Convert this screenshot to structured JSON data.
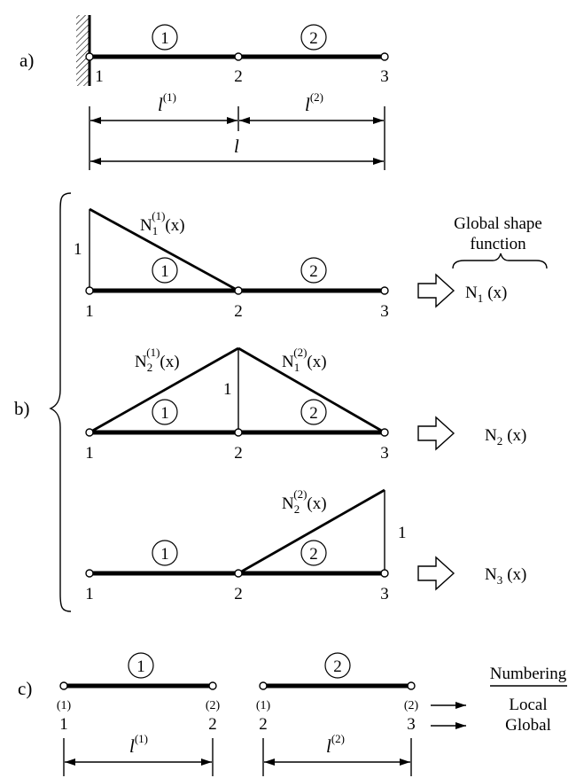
{
  "part_a": {
    "label": "a)",
    "elements": [
      "1",
      "2"
    ],
    "nodes": [
      "1",
      "2",
      "3"
    ],
    "lengths": {
      "l_symbol": "l",
      "sup1": "(1)",
      "sup2": "(2)"
    }
  },
  "part_b": {
    "label": "b)",
    "unit_value": "1",
    "elements": [
      "1",
      "2"
    ],
    "nodes": [
      "1",
      "2",
      "3"
    ],
    "global_caption_line1": "Global shape",
    "global_caption_line2": "function",
    "row1": {
      "shape_N": "N",
      "shape_sub": "1",
      "shape_sup": "(1)",
      "shape_arg": "(x)",
      "global_N": "N",
      "global_sub": "1",
      "global_arg": "(x)"
    },
    "row2": {
      "left_N": "N",
      "left_sub": "2",
      "left_sup": "(1)",
      "left_arg": "(x)",
      "right_N": "N",
      "right_sub": "1",
      "right_sup": "(2)",
      "right_arg": "(x)",
      "global_N": "N",
      "global_sub": "2",
      "global_arg": "(x)"
    },
    "row3": {
      "shape_N": "N",
      "shape_sub": "2",
      "shape_sup": "(2)",
      "shape_arg": "(x)",
      "global_N": "N",
      "global_sub": "3",
      "global_arg": "(x)"
    }
  },
  "part_c": {
    "label": "c)",
    "elements": [
      "1",
      "2"
    ],
    "local_nodes": [
      "(1)",
      "(2)"
    ],
    "global_nodes": [
      "1",
      "2",
      "3"
    ],
    "numbering_title": "Numbering",
    "local_label": "Local",
    "global_label": "Global",
    "lengths": {
      "l_symbol": "l",
      "sup1": "(1)",
      "sup2": "(2)"
    }
  }
}
